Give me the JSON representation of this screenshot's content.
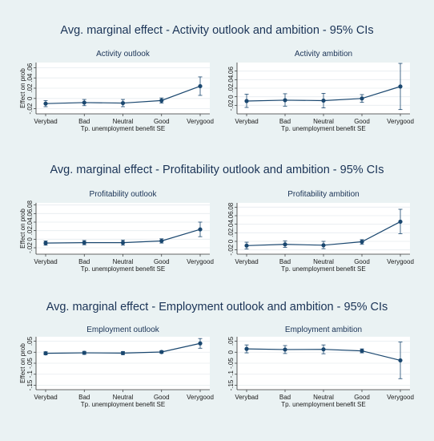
{
  "figure": {
    "section_titles": [
      "Avg. marginal effect - Activity outlook and ambition - 95% CIs",
      "Avg. marginal effect - Profitability outlook and ambition - 95% CIs",
      "Avg. marginal effect - Employment outlook and ambition - 95% CIs"
    ],
    "xlabel": "Tp. unemployment benefit SE",
    "ylabel": "Effect on prob",
    "categories": [
      "Verybad",
      "Bad",
      "Neutral",
      "Good",
      "Verygood"
    ]
  },
  "colors": {
    "line": "#1a476f",
    "panel_bg": "#ffffff",
    "figure_bg": "#eaf2f3",
    "grid": "#e6ecef"
  },
  "chart_data": [
    {
      "type": "line",
      "title": "Activity outlook",
      "categories": [
        "Verybad",
        "Bad",
        "Neutral",
        "Good",
        "Verygood"
      ],
      "values": [
        -0.01,
        -0.008,
        -0.009,
        -0.004,
        0.024
      ],
      "ci_low": [
        -0.016,
        -0.014,
        -0.016,
        -0.009,
        0.006
      ],
      "ci_high": [
        -0.004,
        -0.002,
        -0.002,
        0.001,
        0.042
      ],
      "ytick_labels": [
        "-.02",
        "0",
        ".02",
        ".04",
        ".06"
      ],
      "ytick_values": [
        -0.02,
        0,
        0.02,
        0.04,
        0.06
      ],
      "ylim": [
        -0.03,
        0.07
      ],
      "ylabel": "Effect on prob",
      "xlabel": "Tp. unemployment benefit SE",
      "grid": true
    },
    {
      "type": "line",
      "title": "Activity ambition",
      "categories": [
        "Verybad",
        "Bad",
        "Neutral",
        "Good",
        "Verygood"
      ],
      "values": [
        -0.01,
        -0.008,
        -0.009,
        -0.004,
        0.024
      ],
      "ci_low": [
        -0.025,
        -0.022,
        -0.026,
        -0.013,
        -0.03
      ],
      "ci_high": [
        0.006,
        0.007,
        0.008,
        0.005,
        0.078
      ],
      "ytick_labels": [
        "-.02",
        "0",
        ".02",
        ".04",
        ".06"
      ],
      "ytick_values": [
        -0.02,
        0,
        0.02,
        0.04,
        0.06
      ],
      "ylim": [
        -0.04,
        0.08
      ],
      "ylabel": "",
      "xlabel": "Tp. unemployment benefit SE",
      "grid": true
    },
    {
      "type": "line",
      "title": "Profitability outlook",
      "categories": [
        "Verybad",
        "Bad",
        "Neutral",
        "Good",
        "Verygood"
      ],
      "values": [
        -0.009,
        -0.008,
        -0.008,
        -0.004,
        0.023
      ],
      "ci_low": [
        -0.014,
        -0.013,
        -0.014,
        -0.009,
        0.006
      ],
      "ci_high": [
        -0.004,
        -0.003,
        -0.002,
        0.001,
        0.04
      ],
      "ytick_labels": [
        "-.02",
        "0",
        ".02",
        ".04",
        ".06",
        ".08"
      ],
      "ytick_values": [
        -0.02,
        0,
        0.02,
        0.04,
        0.06,
        0.08
      ],
      "ylim": [
        -0.035,
        0.085
      ],
      "ylabel": "Effect on prob",
      "xlabel": "Tp. unemployment benefit SE",
      "grid": true
    },
    {
      "type": "line",
      "title": "Profitability ambition",
      "categories": [
        "Verybad",
        "Bad",
        "Neutral",
        "Good",
        "Verygood"
      ],
      "values": [
        -0.01,
        -0.007,
        -0.009,
        -0.001,
        0.046
      ],
      "ci_low": [
        -0.018,
        -0.014,
        -0.017,
        -0.007,
        0.018
      ],
      "ci_high": [
        -0.002,
        0.001,
        0.0,
        0.004,
        0.075
      ],
      "ytick_labels": [
        "-.02",
        "0",
        ".02",
        ".04",
        ".06",
        ".08"
      ],
      "ytick_values": [
        -0.02,
        0,
        0.02,
        0.04,
        0.06,
        0.08
      ],
      "ylim": [
        -0.03,
        0.09
      ],
      "ylabel": "",
      "xlabel": "Tp. unemployment benefit SE",
      "grid": true
    },
    {
      "type": "line",
      "title": "Employment outlook",
      "categories": [
        "Verybad",
        "Bad",
        "Neutral",
        "Good",
        "Verygood"
      ],
      "values": [
        -0.005,
        -0.003,
        -0.004,
        0.001,
        0.04
      ],
      "ci_low": [
        -0.012,
        -0.01,
        -0.011,
        -0.005,
        0.018
      ],
      "ci_high": [
        0.002,
        0.004,
        0.003,
        0.007,
        0.062
      ],
      "ytick_labels": [
        "-.15",
        "-.1",
        "-.05",
        "0",
        ".05"
      ],
      "ytick_values": [
        -0.15,
        -0.1,
        -0.05,
        0,
        0.05
      ],
      "ylim": [
        -0.17,
        0.07
      ],
      "ylabel": "Effect on prob",
      "xlabel": "Tp. unemployment benefit SE",
      "grid": true
    },
    {
      "type": "line",
      "title": "Employment ambition",
      "categories": [
        "Verybad",
        "Bad",
        "Neutral",
        "Good",
        "Verygood"
      ],
      "values": [
        0.015,
        0.012,
        0.013,
        0.006,
        -0.037
      ],
      "ci_low": [
        -0.003,
        -0.006,
        -0.007,
        -0.003,
        -0.12
      ],
      "ci_high": [
        0.033,
        0.03,
        0.033,
        0.015,
        0.046
      ],
      "ytick_labels": [
        "-.15",
        "-.1",
        "-.05",
        "0",
        ".05"
      ],
      "ytick_values": [
        -0.15,
        -0.1,
        -0.05,
        0,
        0.05
      ],
      "ylim": [
        -0.17,
        0.07
      ],
      "ylabel": "",
      "xlabel": "Tp. unemployment benefit SE",
      "grid": true
    }
  ]
}
